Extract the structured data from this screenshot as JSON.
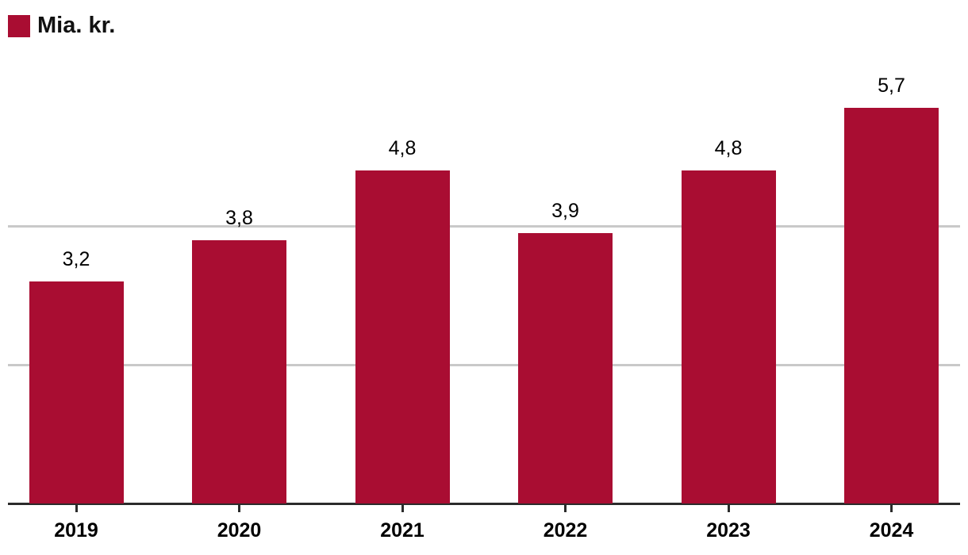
{
  "chart_data": {
    "type": "bar",
    "title": "",
    "xlabel": "",
    "ylabel": "",
    "legend": "Mia. kr.",
    "legend_position": "top-left",
    "categories": [
      "2019",
      "2020",
      "2021",
      "2022",
      "2023",
      "2024"
    ],
    "values": [
      3.2,
      3.8,
      4.8,
      3.9,
      4.8,
      5.7
    ],
    "value_labels": [
      "3,2",
      "3,8",
      "4,8",
      "3,9",
      "4,8",
      "5,7"
    ],
    "decimal_separator": ",",
    "ylim": [
      0,
      6
    ],
    "gridlines": [
      2,
      4
    ],
    "grid": true,
    "y_axis_ticks_visible": false,
    "colors": {
      "bar": "#A90D32",
      "grid": "#C9C9C9",
      "axis": "#2B2B2B",
      "text": "#000000",
      "legend_text": "#111111",
      "background": "#FFFFFF"
    }
  }
}
